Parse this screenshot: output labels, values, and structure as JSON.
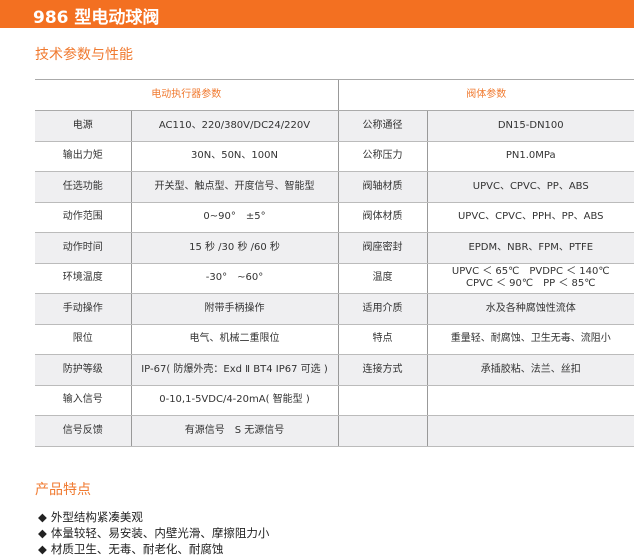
{
  "header": {
    "title": "986 型电动球阀"
  },
  "section1": {
    "title": "技术参数与性能"
  },
  "table": {
    "headers": [
      "电动执行器参数",
      "阀体参数"
    ],
    "rows": [
      [
        "电源",
        "AC110、220/380V/DC24/220V",
        "公称通径",
        "DN15-DN100"
      ],
      [
        "输出力矩",
        "30N、50N、100N",
        "公称压力",
        "PN1.0MPa"
      ],
      [
        "任选功能",
        "开关型、触点型、开度信号、智能型",
        "阀轴材质",
        "UPVC、CPVC、PP、ABS"
      ],
      [
        "动作范围",
        "0~90°　±5°",
        "阀体材质",
        "UPVC、CPVC、PPH、PP、ABS"
      ],
      [
        "动作时间",
        "15 秒 /30 秒 /60 秒",
        "阀座密封",
        "EPDM、NBR、FPM、PTFE"
      ],
      [
        "环境温度",
        "-30°　~60°",
        "温度",
        "UPVC ＜ 65℃　PVDPC ＜ 140℃\nCPVC ＜ 90℃　PP ＜ 85℃"
      ],
      [
        "手动操作",
        "附带手柄操作",
        "适用介质",
        "水及各种腐蚀性流体"
      ],
      [
        "限位",
        "电气、机械二重限位",
        "特点",
        "重量轻、耐腐蚀、卫生无毒、流阻小"
      ],
      [
        "防护等级",
        "IP-67( 防爆外壳：Exd Ⅱ BT4  IP67 可选 )",
        "连接方式",
        "承插胶粘、法兰、丝扣"
      ],
      [
        "输入信号",
        "0-10,1-5VDC/4-20mA( 智能型 )",
        "",
        ""
      ],
      [
        "信号反馈",
        "有源信号　S 无源信号",
        "",
        ""
      ]
    ]
  },
  "section2": {
    "title": "产品特点",
    "items": [
      "外型结构紧凑美观",
      "体量较轻、易安装、内壁光滑、摩擦阻力小",
      "材质卫生、无毒、耐老化、耐腐蚀"
    ]
  },
  "colors": {
    "accent": "#f37021",
    "row_shade": "#efeff1"
  }
}
